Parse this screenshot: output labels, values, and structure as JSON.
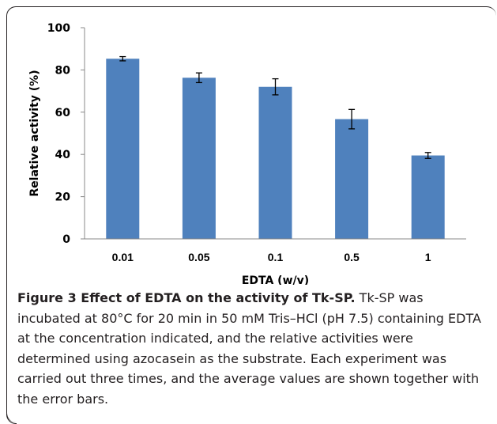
{
  "chart_data": {
    "type": "bar",
    "categories": [
      "0.01",
      "0.05",
      "0.1",
      "0.5",
      "1"
    ],
    "values": [
      85.3,
      76.3,
      72.0,
      56.7,
      39.5
    ],
    "errors": [
      1.0,
      2.3,
      3.8,
      4.6,
      1.4
    ],
    "xlabel": "EDTA (w/v)",
    "ylabel": "Relative activity (%)",
    "ylim": [
      0,
      100
    ],
    "yticks": [
      "0",
      "20",
      "40",
      "60",
      "80",
      "100"
    ],
    "grid": false,
    "legend": "none",
    "bar_color": "#4f81bd"
  },
  "caption": {
    "title": "Figure 3 Effect of EDTA on the activity of Tk-SP.",
    "body": "Tk-SP was incubated at 80°C for 20 min in 50 mM Tris–HCl (pH 7.5) containing EDTA at the concentration indicated, and the relative activities were determined using azocasein as the substrate. Each experiment was carried out three times, and the average values are shown together with the error bars."
  }
}
